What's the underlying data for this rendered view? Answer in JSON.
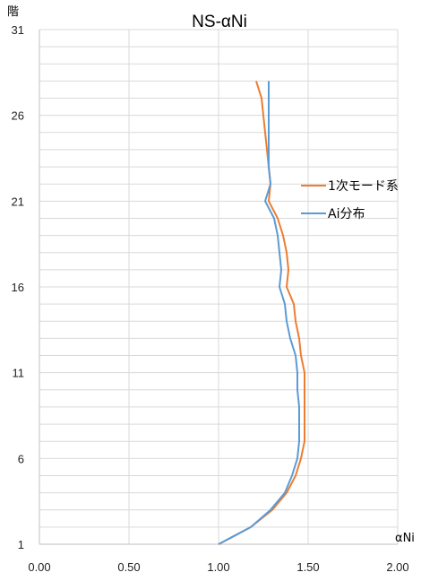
{
  "chart_data": {
    "type": "line",
    "title": "NS-αNi",
    "xlabel": "αNi",
    "ylabel": "階",
    "xlim": [
      0,
      2
    ],
    "ylim": [
      1,
      31
    ],
    "x_ticks": [
      "0.00",
      "0.50",
      "1.00",
      "1.50",
      "2.00"
    ],
    "y_ticks": [
      "1",
      "6",
      "11",
      "16",
      "21",
      "26",
      "31"
    ],
    "y_minor_step": 1,
    "grid": true,
    "legend_position": "right",
    "series": [
      {
        "name": "1次モード系",
        "color": "#ED7D31",
        "floors": [
          1,
          2,
          3,
          4,
          5,
          6,
          7,
          8,
          9,
          10,
          11,
          12,
          13,
          14,
          15,
          16,
          17,
          18,
          19,
          20,
          21,
          22,
          23,
          24,
          25,
          26,
          27,
          28
        ],
        "values": [
          1.0,
          1.18,
          1.3,
          1.38,
          1.43,
          1.46,
          1.48,
          1.48,
          1.48,
          1.48,
          1.48,
          1.46,
          1.45,
          1.43,
          1.42,
          1.38,
          1.39,
          1.38,
          1.36,
          1.33,
          1.28,
          1.29,
          1.28,
          1.27,
          1.26,
          1.25,
          1.24,
          1.21
        ]
      },
      {
        "name": "Ai分布",
        "color": "#5B9BD5",
        "floors": [
          1,
          2,
          3,
          4,
          5,
          6,
          7,
          8,
          9,
          10,
          11,
          12,
          13,
          14,
          15,
          16,
          17,
          18,
          19,
          20,
          21,
          22,
          23,
          24,
          25,
          26,
          27,
          28
        ],
        "values": [
          1.0,
          1.18,
          1.29,
          1.37,
          1.41,
          1.44,
          1.45,
          1.45,
          1.45,
          1.44,
          1.44,
          1.43,
          1.4,
          1.38,
          1.37,
          1.34,
          1.35,
          1.34,
          1.33,
          1.31,
          1.26,
          1.29,
          1.28,
          1.28,
          1.28,
          1.28,
          1.28,
          1.28
        ]
      }
    ]
  }
}
